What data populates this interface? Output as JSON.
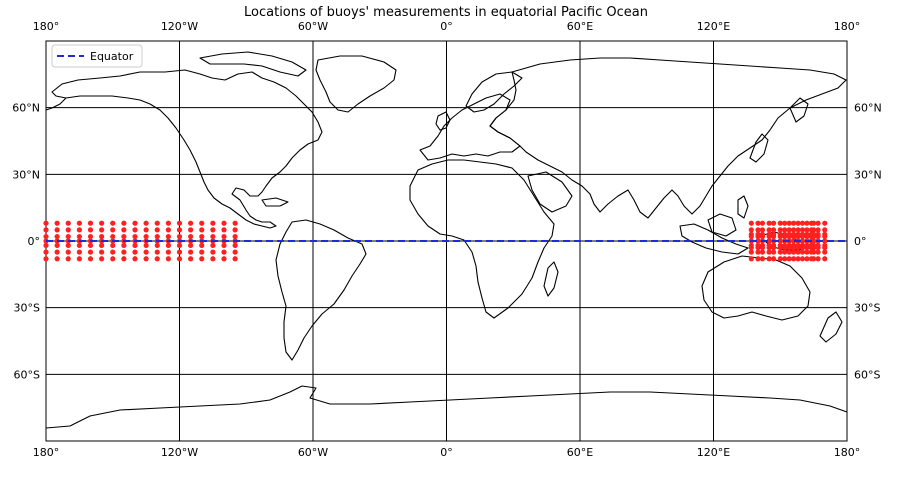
{
  "title": "Locations of buoys' measurements in equatorial Pacific Ocean",
  "legend": {
    "label": "Equator",
    "color": "#1f2bd6"
  },
  "lon_ticks": [
    {
      "lon": -180,
      "label": "180°"
    },
    {
      "lon": -120,
      "label": "120°W"
    },
    {
      "lon": -60,
      "label": "60°W"
    },
    {
      "lon": 0,
      "label": "0°"
    },
    {
      "lon": 60,
      "label": "60°E"
    },
    {
      "lon": 120,
      "label": "120°E"
    },
    {
      "lon": 180,
      "label": "180°"
    }
  ],
  "lat_ticks": [
    {
      "lat": 60,
      "label": "60°N"
    },
    {
      "lat": 30,
      "label": "30°N"
    },
    {
      "lat": 0,
      "label": "0°"
    },
    {
      "lat": -30,
      "label": "30°S"
    },
    {
      "lat": -60,
      "label": "60°S"
    }
  ],
  "map": {
    "projection": "PlateCarree",
    "lon_range": [
      -180,
      180
    ],
    "lat_range": [
      -90,
      90
    ],
    "gridlines": true,
    "legend_position": "upper-left",
    "buoy_color": "#ff2020",
    "equator_lat": 0
  },
  "buoys": {
    "west_lons": [
      -180,
      -175,
      -170,
      -165,
      -160,
      -155,
      -150,
      -145,
      -140,
      -135,
      -130,
      -125,
      -120,
      -115,
      -110,
      -105,
      -100,
      -95
    ],
    "west_lats": [
      -8,
      -5,
      -2,
      0,
      2,
      5,
      8
    ],
    "east_lons": [
      137,
      140,
      142,
      145,
      147,
      150,
      152,
      154,
      156,
      158,
      160,
      162,
      164,
      165,
      167,
      170
    ],
    "east_lats": [
      -8,
      -5,
      -3,
      -2,
      0,
      2,
      3,
      5,
      8
    ]
  }
}
